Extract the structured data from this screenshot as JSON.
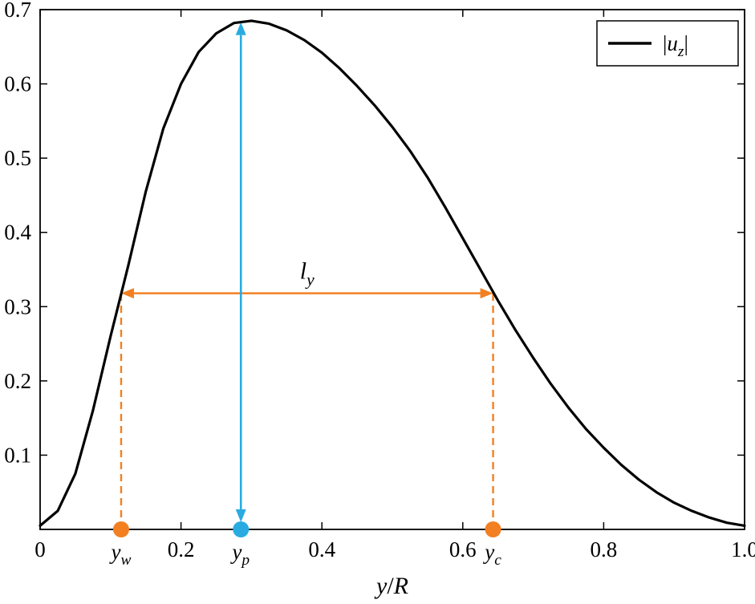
{
  "chart_data": {
    "type": "line",
    "title": "",
    "xlabel": "y/R",
    "ylabel": "",
    "xlim": [
      0,
      1
    ],
    "ylim": [
      0,
      0.7
    ],
    "grid": false,
    "xticks": [
      0,
      0.2,
      0.4,
      0.6,
      0.8,
      1.0
    ],
    "xtick_labels": [
      "0",
      "0.2",
      "0.4",
      "0.6",
      "0.8",
      "1.0"
    ],
    "yticks": [
      0.1,
      0.2,
      0.3,
      0.4,
      0.5,
      0.6,
      0.7
    ],
    "ytick_labels": [
      "0.1",
      "0.2",
      "0.3",
      "0.4",
      "0.5",
      "0.6",
      "0.7"
    ],
    "legend": {
      "position": "top-right",
      "entries": [
        {
          "label": "|u_z|",
          "color": "#000000",
          "line_width": 3.5
        }
      ]
    },
    "series": [
      {
        "name": "|u_z|",
        "color": "#000000",
        "line_width": 3.2,
        "x": [
          0,
          0.025,
          0.05,
          0.075,
          0.1,
          0.125,
          0.15,
          0.175,
          0.2,
          0.225,
          0.25,
          0.275,
          0.3,
          0.325,
          0.35,
          0.375,
          0.4,
          0.425,
          0.45,
          0.475,
          0.5,
          0.525,
          0.55,
          0.575,
          0.6,
          0.625,
          0.65,
          0.675,
          0.7,
          0.725,
          0.75,
          0.775,
          0.8,
          0.825,
          0.85,
          0.875,
          0.9,
          0.925,
          0.95,
          0.975,
          1.0
        ],
        "y": [
          0.005,
          0.025,
          0.075,
          0.16,
          0.26,
          0.355,
          0.455,
          0.54,
          0.6,
          0.643,
          0.668,
          0.682,
          0.685,
          0.681,
          0.672,
          0.659,
          0.642,
          0.621,
          0.597,
          0.571,
          0.542,
          0.51,
          0.474,
          0.434,
          0.392,
          0.35,
          0.308,
          0.268,
          0.231,
          0.196,
          0.164,
          0.135,
          0.11,
          0.087,
          0.067,
          0.05,
          0.036,
          0.025,
          0.016,
          0.009,
          0.005
        ]
      }
    ],
    "annotations": {
      "peak": {
        "label": "y_p",
        "x": 0.285,
        "y_value": 0.684,
        "arrow_color": "#29abe2",
        "marker_color": "#29abe2"
      },
      "width": {
        "label": "l_y",
        "y": 0.318,
        "x_left": 0.115,
        "x_right": 0.643,
        "arrow_color": "#f28022",
        "dash_color": "#f28022"
      },
      "left_point": {
        "label": "y_w",
        "x": 0.115,
        "marker_color": "#f28022"
      },
      "right_point": {
        "label": "y_c",
        "x": 0.643,
        "marker_color": "#f28022"
      }
    },
    "colors": {
      "axis": "#000000",
      "background": "#ffffff",
      "blue": "#29abe2",
      "orange": "#f28022"
    }
  }
}
